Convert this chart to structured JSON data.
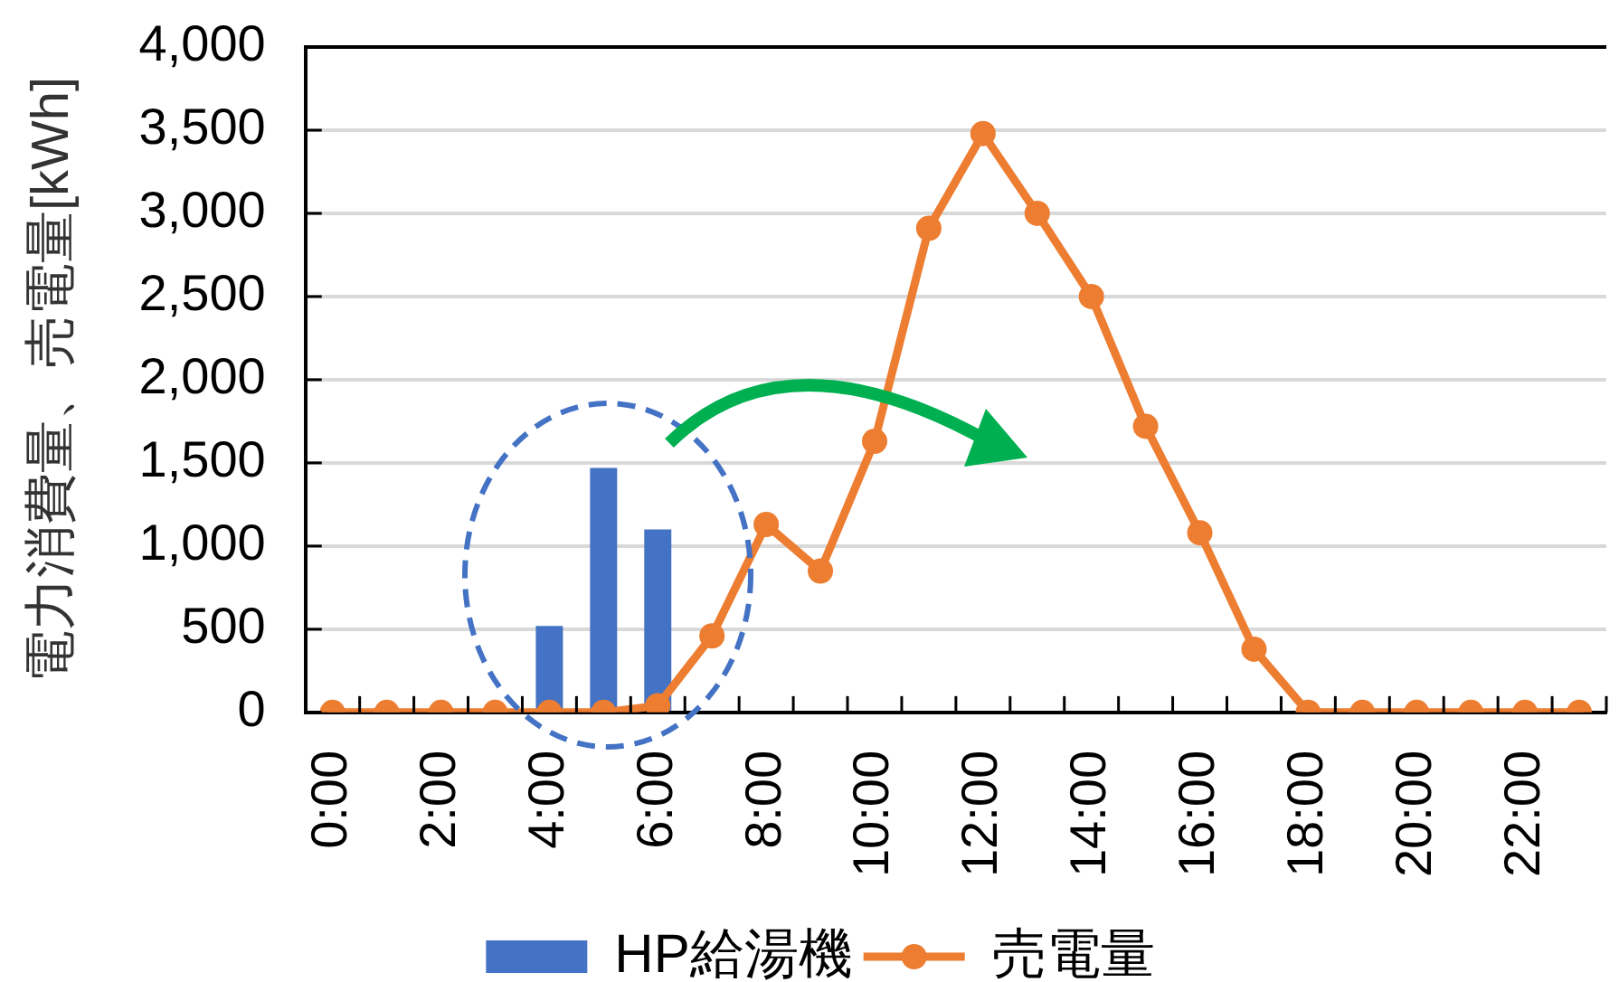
{
  "chart_data": {
    "type": "bar",
    "ylabel": "電力消費量、売電量[kWh]",
    "categories": [
      "0:00",
      null,
      "2:00",
      null,
      "4:00",
      null,
      "6:00",
      null,
      "8:00",
      null,
      "10:00",
      null,
      "12:00",
      null,
      "14:00",
      null,
      "16:00",
      null,
      "18:00",
      null,
      "20:00",
      null,
      "22:00",
      null
    ],
    "series": [
      {
        "name": "HP給湯機",
        "color": "#4472c4",
        "values": [
          null,
          null,
          null,
          null,
          520,
          1470,
          1100,
          null,
          null,
          null,
          null,
          null,
          null,
          null,
          null,
          null,
          null,
          null,
          null,
          null,
          null,
          null,
          null,
          null
        ]
      },
      {
        "name": "売電量",
        "type": "line",
        "color": "#ed7d31",
        "marker": "circle",
        "values": [
          0,
          0,
          0,
          0,
          0,
          0,
          40,
          460,
          1130,
          850,
          1630,
          2910,
          3480,
          3000,
          2500,
          1720,
          1080,
          380,
          0,
          0,
          0,
          0,
          0,
          0
        ]
      }
    ],
    "ylim": [
      0,
      4000
    ],
    "yticks": [
      0,
      500,
      {
        "value": 1000,
        "label": "1,000"
      },
      {
        "value": 1500,
        "label": "1,500"
      },
      {
        "value": 2000,
        "label": "2,000"
      },
      {
        "value": 2500,
        "label": "2,500"
      },
      {
        "value": 3000,
        "label": "3,000"
      },
      {
        "value": 3500,
        "label": "3,500"
      },
      {
        "value": 4000,
        "label": "4,000"
      }
    ],
    "grid": "y",
    "legend": "bottom"
  }
}
